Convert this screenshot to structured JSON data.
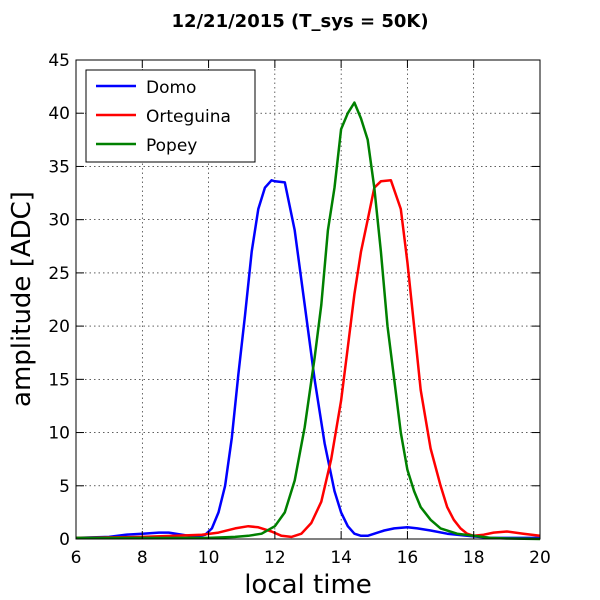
{
  "chart_data": {
    "type": "line",
    "title": "12/21/2015 (T_sys = 50K)",
    "xlabel": "local time",
    "ylabel": "amplitude [ADC]",
    "xlim": [
      6,
      20
    ],
    "ylim": [
      0,
      45
    ],
    "xticks": [
      6,
      8,
      10,
      12,
      14,
      16,
      18,
      20
    ],
    "yticks": [
      0,
      5,
      10,
      15,
      20,
      25,
      30,
      35,
      40,
      45
    ],
    "grid": true,
    "legend_position": "top-left",
    "series": [
      {
        "name": "Domo",
        "color": "#0000ff",
        "x": [
          6,
          7,
          7.5,
          8,
          8.5,
          8.8,
          9.2,
          9.6,
          9.9,
          10.1,
          10.3,
          10.5,
          10.7,
          10.9,
          11.1,
          11.3,
          11.5,
          11.7,
          11.9,
          12.0,
          12.3,
          12.6,
          12.9,
          13.2,
          13.5,
          13.8,
          14.0,
          14.2,
          14.4,
          14.6,
          14.8,
          15.0,
          15.3,
          15.6,
          16.0,
          16.3,
          16.7,
          17.2,
          17.8,
          18.5,
          19.2,
          20
        ],
        "y": [
          0.1,
          0.2,
          0.4,
          0.5,
          0.6,
          0.6,
          0.4,
          0.2,
          0.4,
          1.0,
          2.5,
          5.0,
          9.5,
          15.5,
          21.0,
          27.0,
          31.0,
          33.0,
          33.7,
          33.6,
          33.5,
          29.0,
          22.0,
          15.0,
          9.0,
          4.5,
          2.5,
          1.2,
          0.5,
          0.3,
          0.3,
          0.5,
          0.8,
          1.0,
          1.1,
          1.0,
          0.8,
          0.5,
          0.3,
          0.1,
          0.1,
          0.1
        ]
      },
      {
        "name": "Orteguina",
        "color": "#ff0000",
        "x": [
          6,
          8,
          9,
          9.8,
          10.3,
          10.8,
          11.2,
          11.5,
          11.9,
          12.2,
          12.5,
          12.8,
          13.1,
          13.4,
          13.7,
          14.0,
          14.2,
          14.4,
          14.6,
          14.8,
          15.0,
          15.2,
          15.5,
          15.8,
          16.0,
          16.2,
          16.4,
          16.7,
          17.0,
          17.2,
          17.4,
          17.6,
          17.8,
          18.0,
          18.3,
          18.6,
          19.0,
          19.5,
          20
        ],
        "y": [
          0.1,
          0.2,
          0.3,
          0.4,
          0.6,
          1.0,
          1.2,
          1.1,
          0.7,
          0.3,
          0.2,
          0.5,
          1.5,
          3.5,
          7.5,
          13.0,
          18.0,
          23.0,
          27.0,
          30.0,
          33.0,
          33.6,
          33.7,
          31.0,
          26.0,
          20.0,
          14.0,
          8.5,
          5.0,
          3.0,
          1.8,
          1.0,
          0.5,
          0.3,
          0.4,
          0.6,
          0.7,
          0.5,
          0.3
        ]
      },
      {
        "name": "Popey",
        "color": "#008000",
        "x": [
          6,
          9,
          10,
          10.8,
          11.2,
          11.6,
          12.0,
          12.3,
          12.6,
          12.9,
          13.2,
          13.4,
          13.6,
          13.8,
          14.0,
          14.2,
          14.4,
          14.6,
          14.8,
          15.0,
          15.2,
          15.4,
          15.6,
          15.8,
          16.0,
          16.2,
          16.4,
          16.7,
          17.0,
          17.5,
          18.0,
          18.5,
          19,
          20
        ],
        "y": [
          0.1,
          0.1,
          0.1,
          0.2,
          0.3,
          0.5,
          1.2,
          2.5,
          5.5,
          10.5,
          17.0,
          22.0,
          29.0,
          33.0,
          38.5,
          40.0,
          41.0,
          39.5,
          37.5,
          33.0,
          27.0,
          20.0,
          15.0,
          10.0,
          6.5,
          4.5,
          3.0,
          1.8,
          1.0,
          0.5,
          0.3,
          0.1,
          0.05,
          0.0
        ]
      }
    ]
  }
}
